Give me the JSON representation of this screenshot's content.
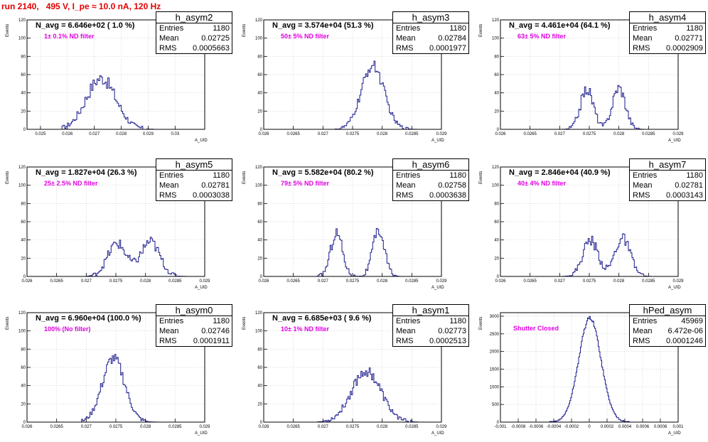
{
  "run_title": "run 2140,   495 V, I_pe ≈ 10.0 nA, 120 Hz",
  "colors": {
    "title": "#e00000",
    "hist": "#1a1a8c",
    "note": "#e000e0",
    "grid": "#c8c8c8"
  },
  "chart_data": [
    {
      "type": "bar",
      "name": "h_asym2",
      "stats": [
        {
          "label": "Entries",
          "value": "1180"
        },
        {
          "label": "Mean",
          "value": "0.02725"
        },
        {
          "label": "RMS",
          "value": "0.0005663"
        }
      ],
      "n_avg": "N_avg = 6.646e+02 ( 1.0 %)",
      "note": "1± 0.1% ND filter",
      "ylabel": "Events",
      "xlabel": "A_UID",
      "xlim": [
        0.0245,
        0.0311
      ],
      "ylim": [
        0,
        120
      ],
      "xticks": [
        0.025,
        0.026,
        0.027,
        0.028,
        0.029,
        0.03
      ],
      "xtick_labels": [
        "0.025",
        "0.026",
        "0.027",
        "0.028",
        "0.029",
        "0.03"
      ],
      "yticks": [
        0,
        20,
        40,
        60,
        80,
        100,
        120
      ],
      "ytick_labels": [
        "0",
        "20",
        "40",
        "60",
        "80",
        "100",
        "120"
      ],
      "hist": {
        "mean": 0.02725,
        "sigma": 0.00055,
        "peak": 56,
        "bin": 5e-05,
        "jitter": 7,
        "range": [
          0.0258,
          0.0292
        ]
      }
    },
    {
      "type": "bar",
      "name": "h_asym3",
      "stats": [
        {
          "label": "Entries",
          "value": "1180"
        },
        {
          "label": "Mean",
          "value": "0.02784"
        },
        {
          "label": "RMS",
          "value": "0.0001977"
        }
      ],
      "n_avg": "N_avg = 3.574e+04 (51.3 %)",
      "note": "50± 5% ND filter",
      "ylabel": "Events",
      "xlabel": "A_UID",
      "xlim": [
        0.026,
        0.029
      ],
      "ylim": [
        0,
        120
      ],
      "xticks": [
        0.026,
        0.0265,
        0.027,
        0.0275,
        0.028,
        0.0285,
        0.029
      ],
      "xtick_labels": [
        "0.026",
        "0.0265",
        "0.027",
        "0.0275",
        "0.028",
        "0.0285",
        "0.029"
      ],
      "yticks": [
        0,
        20,
        40,
        60,
        80,
        100,
        120
      ],
      "ytick_labels": [
        "0",
        "20",
        "40",
        "60",
        "80",
        "100",
        "120"
      ],
      "hist": {
        "mean": 0.02784,
        "sigma": 0.00019,
        "peak": 70,
        "bin": 2e-05,
        "jitter": 6,
        "range": [
          0.0272,
          0.0286
        ]
      }
    },
    {
      "type": "bar",
      "name": "h_asym4",
      "stats": [
        {
          "label": "Entries",
          "value": "1180"
        },
        {
          "label": "Mean",
          "value": "0.02771"
        },
        {
          "label": "RMS",
          "value": "0.0002909"
        }
      ],
      "n_avg": "N_avg = 4.461e+04 (64.1 %)",
      "note": "63± 5% ND filter",
      "ylabel": "Events",
      "xlabel": "A_UID",
      "xlim": [
        0.026,
        0.029
      ],
      "ylim": [
        0,
        120
      ],
      "xticks": [
        0.026,
        0.0265,
        0.027,
        0.0275,
        0.028,
        0.0285,
        0.029
      ],
      "xtick_labels": [
        "0.026",
        "0.0265",
        "0.027",
        "0.0275",
        "0.028",
        "0.0285",
        "0.029"
      ],
      "yticks": [
        0,
        20,
        40,
        60,
        80,
        100,
        120
      ],
      "ytick_labels": [
        "0",
        "20",
        "40",
        "60",
        "80",
        "100",
        "120"
      ],
      "hist": {
        "peaks": [
          [
            0.02746,
            0.00011,
            44
          ],
          [
            0.028,
            0.00011,
            46
          ]
        ],
        "bin": 2e-05,
        "jitter": 6,
        "range": [
          0.027,
          0.0286
        ]
      }
    },
    {
      "type": "bar",
      "name": "h_asym5",
      "stats": [
        {
          "label": "Entries",
          "value": "1180"
        },
        {
          "label": "Mean",
          "value": "0.02781"
        },
        {
          "label": "RMS",
          "value": "0.0003038"
        }
      ],
      "n_avg": "N_avg = 1.827e+04 (26.3 %)",
      "note": "25± 2.5% ND filter",
      "ylabel": "Events",
      "xlabel": "A_UID",
      "xlim": [
        0.026,
        0.029
      ],
      "ylim": [
        0,
        120
      ],
      "xticks": [
        0.026,
        0.0265,
        0.027,
        0.0275,
        0.028,
        0.0285,
        0.029
      ],
      "xtick_labels": [
        "0.026",
        "0.0265",
        "0.027",
        "0.0275",
        "0.028",
        "0.0285",
        "0.029"
      ],
      "yticks": [
        0,
        20,
        40,
        60,
        80,
        100,
        120
      ],
      "ytick_labels": [
        "0",
        "20",
        "40",
        "60",
        "80",
        "100",
        "120"
      ],
      "hist": {
        "peaks": [
          [
            0.02752,
            0.00016,
            36
          ],
          [
            0.02808,
            0.00016,
            38
          ]
        ],
        "bin": 2e-05,
        "jitter": 6,
        "range": [
          0.027,
          0.0287
        ]
      }
    },
    {
      "type": "bar",
      "name": "h_asym6",
      "stats": [
        {
          "label": "Entries",
          "value": "1180"
        },
        {
          "label": "Mean",
          "value": "0.02758"
        },
        {
          "label": "RMS",
          "value": "0.0003638"
        }
      ],
      "n_avg": "N_avg = 5.582e+04 (80.2 %)",
      "note": "79± 5% ND filter",
      "ylabel": "Events",
      "xlabel": "A_UID",
      "xlim": [
        0.026,
        0.029
      ],
      "ylim": [
        0,
        120
      ],
      "xticks": [
        0.026,
        0.0265,
        0.027,
        0.0275,
        0.028,
        0.0285,
        0.029
      ],
      "xtick_labels": [
        "0.026",
        "0.0265",
        "0.027",
        "0.0275",
        "0.028",
        "0.0285",
        "0.029"
      ],
      "yticks": [
        0,
        20,
        40,
        60,
        80,
        100,
        120
      ],
      "ytick_labels": [
        "0",
        "20",
        "40",
        "60",
        "80",
        "100",
        "120"
      ],
      "hist": {
        "peaks": [
          [
            0.02723,
            0.0001,
            48
          ],
          [
            0.02794,
            0.0001,
            50
          ]
        ],
        "bin": 2e-05,
        "jitter": 6,
        "range": [
          0.0269,
          0.0283
        ]
      }
    },
    {
      "type": "bar",
      "name": "h_asym7",
      "stats": [
        {
          "label": "Entries",
          "value": "1180"
        },
        {
          "label": "Mean",
          "value": "0.02781"
        },
        {
          "label": "RMS",
          "value": "0.0003143"
        }
      ],
      "n_avg": "N_avg = 2.846e+04 (40.9 %)",
      "note": "40± 4% ND filter",
      "ylabel": "Events",
      "xlabel": "A_UID",
      "xlim": [
        0.026,
        0.029
      ],
      "ylim": [
        0,
        120
      ],
      "xticks": [
        0.026,
        0.0265,
        0.027,
        0.0275,
        0.028,
        0.0285,
        0.029
      ],
      "xtick_labels": [
        "0.026",
        "0.0265",
        "0.027",
        "0.0275",
        "0.028",
        "0.0285",
        "0.029"
      ],
      "yticks": [
        0,
        20,
        40,
        60,
        80,
        100,
        120
      ],
      "ytick_labels": [
        "0",
        "20",
        "40",
        "60",
        "80",
        "100",
        "120"
      ],
      "hist": {
        "peaks": [
          [
            0.02752,
            0.00013,
            40
          ],
          [
            0.02806,
            0.00013,
            42
          ]
        ],
        "bin": 2e-05,
        "jitter": 6,
        "range": [
          0.027,
          0.0287
        ]
      }
    },
    {
      "type": "bar",
      "name": "h_asym0",
      "stats": [
        {
          "label": "Entries",
          "value": "1180"
        },
        {
          "label": "Mean",
          "value": "0.02746"
        },
        {
          "label": "RMS",
          "value": "0.0001911"
        }
      ],
      "n_avg": "N_avg = 6.960e+04 (100.0 %)",
      "note": "100% (No filter)",
      "ylabel": "Events",
      "xlabel": "A_UID",
      "xlim": [
        0.026,
        0.029
      ],
      "ylim": [
        0,
        120
      ],
      "xticks": [
        0.026,
        0.0265,
        0.027,
        0.0275,
        0.028,
        0.0285,
        0.029
      ],
      "xtick_labels": [
        "0.026",
        "0.0265",
        "0.027",
        "0.0275",
        "0.028",
        "0.0285",
        "0.029"
      ],
      "yticks": [
        0,
        20,
        40,
        60,
        80,
        100,
        120
      ],
      "ytick_labels": [
        "0",
        "20",
        "40",
        "60",
        "80",
        "100",
        "120"
      ],
      "hist": {
        "mean": 0.02746,
        "sigma": 0.00019,
        "peak": 70,
        "bin": 2e-05,
        "jitter": 6,
        "range": [
          0.0269,
          0.0282
        ]
      }
    },
    {
      "type": "bar",
      "name": "h_asym1",
      "stats": [
        {
          "label": "Entries",
          "value": "1180"
        },
        {
          "label": "Mean",
          "value": "0.02773"
        },
        {
          "label": "RMS",
          "value": "0.0002513"
        }
      ],
      "n_avg": "N_avg = 6.685e+03 ( 9.6 %)",
      "note": "10± 1% ND filter",
      "ylabel": "Events",
      "xlabel": "A_UID",
      "xlim": [
        0.026,
        0.029
      ],
      "ylim": [
        0,
        120
      ],
      "xticks": [
        0.026,
        0.0265,
        0.027,
        0.0275,
        0.028,
        0.0285,
        0.029
      ],
      "xtick_labels": [
        "0.026",
        "0.0265",
        "0.027",
        "0.0275",
        "0.028",
        "0.0285",
        "0.029"
      ],
      "yticks": [
        0,
        20,
        40,
        60,
        80,
        100,
        120
      ],
      "ytick_labels": [
        "0",
        "20",
        "40",
        "60",
        "80",
        "100",
        "120"
      ],
      "hist": {
        "mean": 0.02773,
        "sigma": 0.00025,
        "peak": 56,
        "bin": 2e-05,
        "jitter": 6,
        "range": [
          0.0269,
          0.0286
        ]
      }
    },
    {
      "type": "bar",
      "name": "hPed_asym",
      "stats": [
        {
          "label": "Entries",
          "value": "45969"
        },
        {
          "label": "Mean",
          "value": "6.472e-06"
        },
        {
          "label": "RMS",
          "value": "0.0001246"
        }
      ],
      "n_avg": "",
      "note": "Shutter Closed",
      "ylabel": "Events",
      "xlabel": "A_UID",
      "xlim": [
        -0.001,
        0.001
      ],
      "ylim": [
        0,
        3100
      ],
      "xticks": [
        -0.001,
        -0.0008,
        -0.0006,
        -0.0004,
        -0.0002,
        0,
        0.0002,
        0.0004,
        0.0006,
        0.0008,
        0.001
      ],
      "xtick_labels": [
        "-0.001",
        "-0.0008",
        "-0.0006",
        "-0.0004",
        "-0.0002",
        "0",
        "0.0002",
        "0.0004",
        "0.0006",
        "0.0008",
        "0.001"
      ],
      "yticks": [
        0,
        500,
        1000,
        1500,
        2000,
        2500,
        3000
      ],
      "ytick_labels": [
        "0",
        "500",
        "1000",
        "1500",
        "2000",
        "2500",
        "3000"
      ],
      "hist": {
        "mean": 6.5e-06,
        "sigma": 0.000125,
        "peak": 2950,
        "bin": 1e-05,
        "jitter": 50,
        "range": [
          -0.00045,
          0.00045
        ]
      }
    }
  ]
}
